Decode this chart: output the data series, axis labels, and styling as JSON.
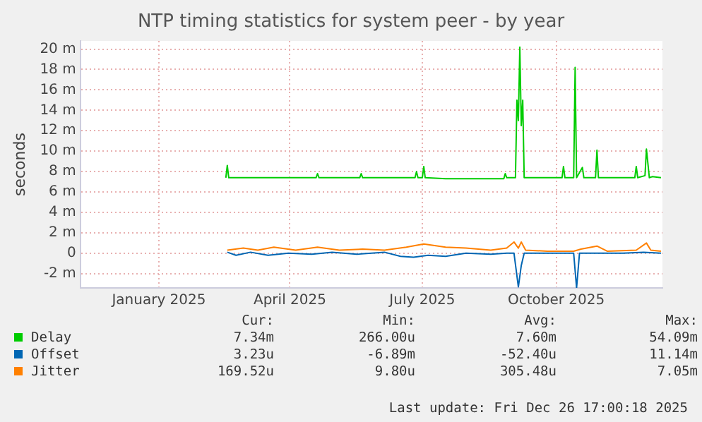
{
  "chart_data": {
    "type": "line",
    "title": "NTP timing statistics for system peer - by year",
    "ylabel": "seconds",
    "xlim": [
      "2024-11-23",
      "2025-12-28"
    ],
    "xticks": [
      {
        "value": "2025-01-16",
        "label": "January 2025"
      },
      {
        "value": "2025-04-16",
        "label": "April 2025"
      },
      {
        "value": "2025-07-16",
        "label": "July 2025"
      },
      {
        "value": "2025-10-16",
        "label": "October 2025"
      }
    ],
    "ylim": [
      -3.4,
      20.8
    ],
    "yticks": [
      {
        "value": -2,
        "label": "-2 m"
      },
      0,
      {
        "value": 2,
        "label": "2 m"
      },
      {
        "value": 4,
        "label": "4 m"
      },
      {
        "value": 6,
        "label": "6 m"
      },
      {
        "value": 8,
        "label": "8 m"
      },
      {
        "value": 10,
        "label": "10 m"
      },
      {
        "value": 12,
        "label": "12 m"
      },
      {
        "value": 14,
        "label": "14 m"
      },
      {
        "value": 16,
        "label": "16 m"
      },
      {
        "value": 18,
        "label": "18 m"
      },
      {
        "value": 20,
        "label": "20 m"
      }
    ],
    "grid": true,
    "legend": "bottom",
    "marker": "none",
    "line_style": "solid",
    "series": [
      {
        "name": "Delay",
        "color": "#00cc00",
        "x": [
          "2025-03-03",
          "2025-03-04",
          "2025-03-05",
          "2025-05-04",
          "2025-05-05",
          "2025-05-06",
          "2025-06-03",
          "2025-06-04",
          "2025-06-05",
          "2025-07-11",
          "2025-07-12",
          "2025-07-13",
          "2025-07-16",
          "2025-07-17",
          "2025-07-18",
          "2025-08-01",
          "2025-08-20",
          "2025-09-10",
          "2025-09-11",
          "2025-09-12",
          "2025-09-18",
          "2025-09-19",
          "2025-09-20",
          "2025-09-21",
          "2025-09-22",
          "2025-09-23",
          "2025-09-24",
          "2025-10-20",
          "2025-10-21",
          "2025-10-22",
          "2025-10-28",
          "2025-10-29",
          "2025-10-30",
          "2025-11-03",
          "2025-11-04",
          "2025-11-12",
          "2025-11-13",
          "2025-11-14",
          "2025-12-09",
          "2025-12-10",
          "2025-12-11",
          "2025-12-16",
          "2025-12-17",
          "2025-12-19",
          "2025-12-21",
          "2025-12-27"
        ],
        "values": [
          7.4,
          8.6,
          7.4,
          7.4,
          7.8,
          7.4,
          7.4,
          7.8,
          7.4,
          7.4,
          8.0,
          7.4,
          7.4,
          8.5,
          7.4,
          7.3,
          7.3,
          7.3,
          7.8,
          7.4,
          7.4,
          15,
          13,
          20.2,
          12.5,
          15,
          7.4,
          7.4,
          8.5,
          7.4,
          7.4,
          18.2,
          7.4,
          8.4,
          7.4,
          7.4,
          10.1,
          7.4,
          7.4,
          8.5,
          7.4,
          7.6,
          10.2,
          7.4,
          7.5,
          7.4
        ]
      },
      {
        "name": "Offset",
        "color": "#0066b3",
        "x": [
          "2025-03-04",
          "2025-03-10",
          "2025-03-20",
          "2025-04-01",
          "2025-04-15",
          "2025-05-01",
          "2025-05-15",
          "2025-06-01",
          "2025-06-20",
          "2025-07-01",
          "2025-07-10",
          "2025-07-20",
          "2025-08-01",
          "2025-08-15",
          "2025-09-01",
          "2025-09-12",
          "2025-09-17",
          "2025-09-20",
          "2025-09-22",
          "2025-09-24",
          "2025-10-05",
          "2025-10-20",
          "2025-10-28",
          "2025-10-30",
          "2025-11-01",
          "2025-11-15",
          "2025-12-01",
          "2025-12-15",
          "2025-12-27"
        ],
        "values": [
          0.1,
          -0.2,
          0.1,
          -0.2,
          0,
          -0.1,
          0.1,
          -0.1,
          0.1,
          -0.3,
          -0.4,
          -0.2,
          -0.3,
          0,
          -0.1,
          0,
          0,
          -3.3,
          -1.2,
          0,
          0,
          0,
          0,
          -3.4,
          0,
          0,
          0,
          0.1,
          0
        ]
      },
      {
        "name": "Jitter",
        "color": "#ff8000",
        "x": [
          "2025-03-04",
          "2025-03-15",
          "2025-03-25",
          "2025-04-05",
          "2025-04-20",
          "2025-05-05",
          "2025-05-20",
          "2025-06-05",
          "2025-06-20",
          "2025-07-05",
          "2025-07-17",
          "2025-08-01",
          "2025-08-15",
          "2025-09-01",
          "2025-09-12",
          "2025-09-17",
          "2025-09-20",
          "2025-09-22",
          "2025-09-25",
          "2025-10-10",
          "2025-10-28",
          "2025-11-02",
          "2025-11-13",
          "2025-11-20",
          "2025-12-10",
          "2025-12-17",
          "2025-12-20",
          "2025-12-27"
        ],
        "values": [
          0.3,
          0.5,
          0.3,
          0.6,
          0.3,
          0.6,
          0.3,
          0.4,
          0.3,
          0.6,
          0.9,
          0.6,
          0.5,
          0.3,
          0.5,
          1.1,
          0.5,
          1.1,
          0.3,
          0.2,
          0.2,
          0.4,
          0.7,
          0.2,
          0.3,
          1.0,
          0.3,
          0.2
        ]
      }
    ],
    "annotations": [
      "Cur:",
      "Min:",
      "Avg:",
      "Max:",
      "7.34m",
      "266.00u",
      "7.60m",
      "54.09m",
      "3.23u",
      "-6.89m",
      "-52.40u",
      "11.14m",
      "169.52u",
      "9.80u",
      "305.48u",
      "7.05m",
      "Last update: Fri Dec 26 17:00:18 2025"
    ]
  }
}
